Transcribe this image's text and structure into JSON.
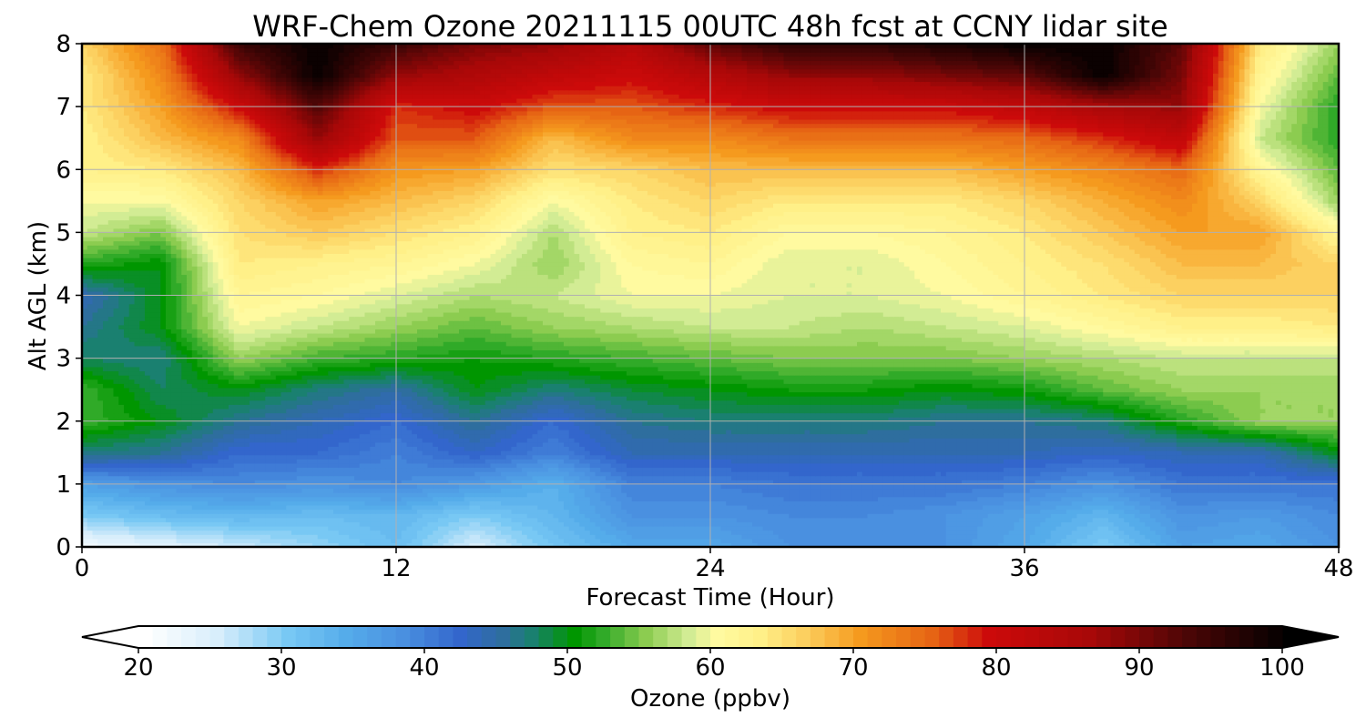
{
  "chart_data": {
    "type": "heatmap",
    "title": "WRF-Chem Ozone  20211115 00UTC 48h fcst at CCNY lidar site",
    "xlabel": "Forecast Time (Hour)",
    "ylabel": "Alt AGL (km)",
    "xlim": [
      0,
      48
    ],
    "ylim": [
      0,
      8
    ],
    "xticks": [
      0,
      12,
      24,
      36,
      48
    ],
    "yticks": [
      0,
      1,
      2,
      3,
      4,
      5,
      6,
      7,
      8
    ],
    "grid": true,
    "x": [
      0,
      3,
      6,
      9,
      12,
      15,
      18,
      21,
      24,
      27,
      30,
      33,
      36,
      39,
      42,
      45,
      48
    ],
    "y": [
      0,
      0.5,
      1,
      1.5,
      2,
      2.5,
      3,
      3.5,
      4,
      4.5,
      5,
      5.5,
      6,
      6.5,
      7,
      7.5,
      8
    ],
    "z": [
      [
        22,
        24,
        26,
        29,
        32,
        25,
        31,
        35,
        35,
        38,
        38,
        38,
        35,
        30,
        36,
        35,
        38
      ],
      [
        30,
        32,
        33,
        32,
        33,
        30,
        33,
        38,
        38,
        39,
        39,
        38,
        36,
        33,
        38,
        37,
        39
      ],
      [
        36,
        38,
        39,
        38,
        39,
        37,
        34,
        40,
        40,
        41,
        41,
        41,
        40,
        38,
        41,
        41,
        41
      ],
      [
        47,
        46,
        42,
        42,
        40,
        43,
        40,
        44,
        44,
        44,
        44,
        44,
        44,
        43,
        44,
        44,
        50
      ],
      [
        53,
        50,
        46,
        44,
        42,
        46,
        42,
        46,
        47,
        47,
        47,
        46,
        46,
        47,
        52,
        56,
        56
      ],
      [
        53,
        48,
        50,
        47,
        45,
        50,
        47,
        49,
        50,
        51,
        51,
        50,
        51,
        54,
        56,
        56,
        56
      ],
      [
        48,
        47,
        56,
        53,
        52,
        51,
        52,
        53,
        54,
        55,
        55,
        55,
        56,
        57,
        58,
        58,
        58
      ],
      [
        46,
        50,
        60,
        58,
        56,
        54,
        56,
        57,
        58,
        58,
        57,
        58,
        59,
        61,
        63,
        63,
        64
      ],
      [
        44,
        50,
        62,
        61,
        59,
        57,
        58,
        60,
        60,
        59,
        59,
        60,
        62,
        64,
        66,
        66,
        66
      ],
      [
        52,
        50,
        64,
        63,
        62,
        60,
        56,
        61,
        62,
        59,
        59,
        61,
        63,
        65,
        68,
        68,
        66
      ],
      [
        58,
        55,
        65,
        67,
        65,
        63,
        57,
        63,
        64,
        61,
        61,
        62,
        64,
        67,
        70,
        70,
        62
      ],
      [
        60,
        60,
        66,
        70,
        68,
        66,
        60,
        64,
        66,
        64,
        64,
        64,
        66,
        69,
        72,
        66,
        56
      ],
      [
        63,
        64,
        68,
        78,
        71,
        70,
        65,
        66,
        68,
        68,
        68,
        68,
        70,
        72,
        75,
        62,
        54
      ],
      [
        63,
        68,
        72,
        88,
        76,
        76,
        68,
        72,
        72,
        74,
        74,
        74,
        75,
        78,
        82,
        58,
        52
      ],
      [
        64,
        70,
        80,
        93,
        78,
        80,
        76,
        76,
        78,
        80,
        80,
        80,
        82,
        86,
        88,
        60,
        52
      ],
      [
        64,
        72,
        88,
        100,
        88,
        85,
        82,
        80,
        84,
        88,
        88,
        90,
        92,
        100,
        90,
        62,
        54
      ],
      [
        66,
        74,
        95,
        100,
        95,
        90,
        88,
        84,
        92,
        96,
        96,
        98,
        100,
        100,
        92,
        64,
        56
      ]
    ],
    "colorbar": {
      "label": "Ozone  (ppbv)",
      "min": 20,
      "max": 100,
      "step": 1,
      "ticks": [
        20,
        30,
        40,
        50,
        60,
        70,
        80,
        90,
        100
      ],
      "extend": "both",
      "colors": [
        {
          "v": 20,
          "c": "#ffffff"
        },
        {
          "v": 25,
          "c": "#d8eefb"
        },
        {
          "v": 30,
          "c": "#78c8f4"
        },
        {
          "v": 34,
          "c": "#55acea"
        },
        {
          "v": 38,
          "c": "#4a90e0"
        },
        {
          "v": 42,
          "c": "#3366cc"
        },
        {
          "v": 45,
          "c": "#2e6e9e"
        },
        {
          "v": 47,
          "c": "#1a8070"
        },
        {
          "v": 50,
          "c": "#009600"
        },
        {
          "v": 52,
          "c": "#30aa28"
        },
        {
          "v": 55,
          "c": "#8ccc50"
        },
        {
          "v": 58,
          "c": "#d2ec94"
        },
        {
          "v": 60,
          "c": "#fffaa0"
        },
        {
          "v": 63,
          "c": "#fff088"
        },
        {
          "v": 66,
          "c": "#fcd060"
        },
        {
          "v": 70,
          "c": "#f59a1e"
        },
        {
          "v": 75,
          "c": "#e66414"
        },
        {
          "v": 79,
          "c": "#cc0a0a"
        },
        {
          "v": 86,
          "c": "#a80808"
        },
        {
          "v": 93,
          "c": "#4a0606"
        },
        {
          "v": 100,
          "c": "#000000"
        }
      ]
    }
  }
}
